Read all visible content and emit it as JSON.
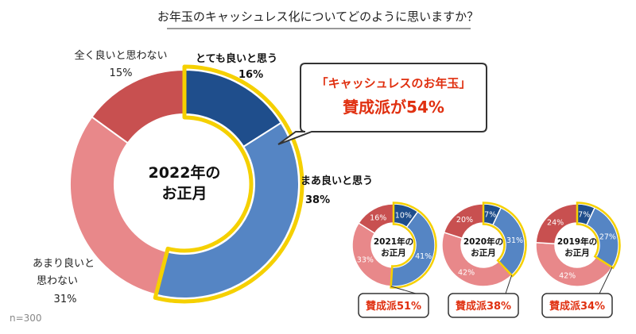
{
  "title": "お年玉のキャッシュレス化についてどのように思いますか？",
  "sample_size": "n=300",
  "colors": {
    "very_good": "#1f4e8c",
    "somewhat_good": "#5585c4",
    "not_very": "#e8888a",
    "not_at_all": "#c85050",
    "highlight": "#f5d000",
    "callout_red": "#e03010"
  },
  "callout": {
    "line1": "「キャッシュレスのお年玉」",
    "line2": "賛成派が54%"
  },
  "main_labels": {
    "center_line1": "2022年の",
    "center_line2": "お正月",
    "very_good": "とても良いと思う",
    "very_good_pct": "16%",
    "somewhat_good_line1": "まあ良いと思う",
    "somewhat_good_pct": "38%",
    "not_very_line1": "あまり良いと",
    "not_very_line2": "思わない",
    "not_very_pct": "31%",
    "not_at_all": "全く良いと思わない",
    "not_at_all_pct": "15%"
  },
  "chart_data": [
    {
      "type": "pie",
      "title": "2022年のお正月",
      "categories": [
        "とても良いと思う",
        "まあ良いと思う",
        "あまり良いと思わない",
        "全く良いと思わない"
      ],
      "values": [
        16,
        38,
        31,
        15
      ],
      "summary": "賛成派が54%"
    },
    {
      "type": "pie",
      "title": "2021年のお正月",
      "categories": [
        "とても良いと思う",
        "まあ良いと思う",
        "あまり良いと思わない",
        "全く良いと思わない"
      ],
      "values": [
        10,
        41,
        33,
        16
      ],
      "value_labels": [
        "10%",
        "41%",
        "33%",
        "16%"
      ],
      "center_line1": "2021年の",
      "center_line2": "お正月",
      "summary": "賛成派51%"
    },
    {
      "type": "pie",
      "title": "2020年のお正月",
      "categories": [
        "とても良いと思う",
        "まあ良いと思う",
        "あまり良いと思わない",
        "全く良いと思わない"
      ],
      "values": [
        7,
        31,
        42,
        20
      ],
      "value_labels": [
        "7%",
        "31%",
        "42%",
        "20%"
      ],
      "center_line1": "2020年の",
      "center_line2": "お正月",
      "summary": "賛成派38%"
    },
    {
      "type": "pie",
      "title": "2019年のお正月",
      "categories": [
        "とても良いと思う",
        "まあ良いと思う",
        "あまり良いと思わない",
        "全く良いと思わない"
      ],
      "values": [
        7,
        27,
        42,
        24
      ],
      "value_labels": [
        "7%",
        "27%",
        "42%",
        "24%"
      ],
      "center_line1": "2019年の",
      "center_line2": "お正月",
      "summary": "賛成派34%"
    }
  ]
}
